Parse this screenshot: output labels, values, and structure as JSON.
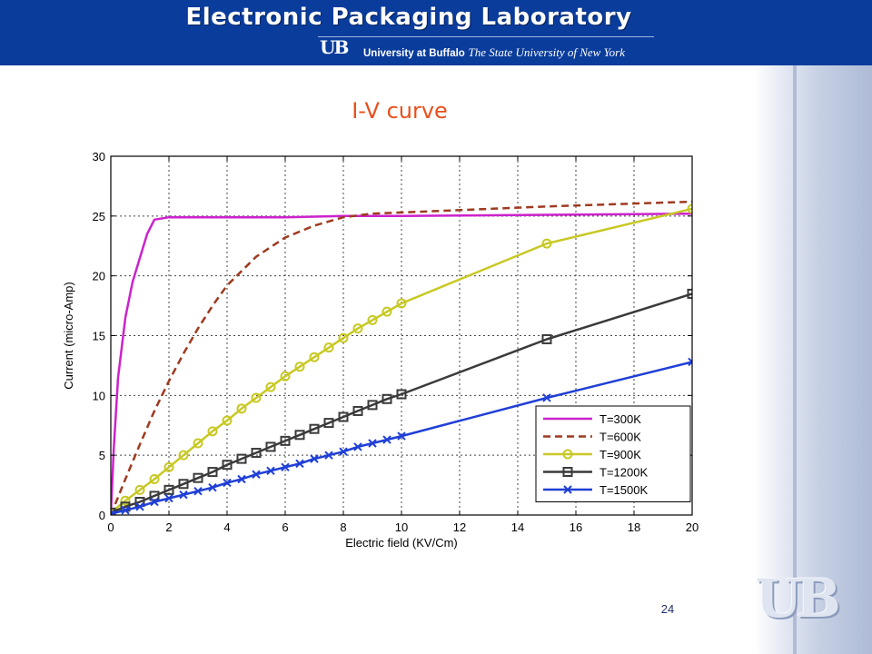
{
  "header": {
    "lab_title": "Electronic Packaging Laboratory",
    "ub_mark": "UB",
    "university": "University at Buffalo",
    "suny": "The State University of New York"
  },
  "slide": {
    "title": "I-V curve",
    "number": "24"
  },
  "colors": {
    "header_bg": "#0a3c9c",
    "title": "#e8501c",
    "T300": "#cc22cc",
    "T600": "#9e3a1f",
    "T900": "#c8c824",
    "T1200": "#3a3a3a",
    "T1500": "#1f3fd6"
  },
  "chart_data": {
    "type": "line",
    "title": "",
    "xlabel": "Electric field (KV/Cm)",
    "ylabel": "Current (micro-Amp)",
    "xlim": [
      0,
      20
    ],
    "ylim": [
      0,
      30
    ],
    "xticks": [
      0,
      2,
      4,
      6,
      8,
      10,
      12,
      14,
      16,
      18,
      20
    ],
    "yticks": [
      0,
      5,
      10,
      15,
      20,
      25,
      30
    ],
    "grid": true,
    "legend_position": "lower-right",
    "series": [
      {
        "name": "T=300K",
        "color": "#cc22cc",
        "line_style": "solid",
        "marker": "none",
        "x": [
          0,
          0.1,
          0.25,
          0.5,
          0.75,
          1.0,
          1.25,
          1.5,
          2.0,
          4.0,
          6.0,
          8.0,
          10.0,
          15.0,
          20.0
        ],
        "y": [
          0,
          5.5,
          11.5,
          16.5,
          19.5,
          21.5,
          23.5,
          24.7,
          24.9,
          24.9,
          24.9,
          25.0,
          25.0,
          25.1,
          25.2
        ]
      },
      {
        "name": "T=600K",
        "color": "#9e3a1f",
        "line_style": "dashed",
        "marker": "none",
        "x": [
          0,
          0.5,
          1.0,
          1.5,
          2.0,
          2.5,
          3.0,
          3.5,
          4.0,
          4.5,
          5.0,
          6.0,
          7.0,
          8.0,
          9.0,
          10.0,
          12.0,
          15.0,
          20.0
        ],
        "y": [
          0,
          3.0,
          5.9,
          8.7,
          11.2,
          13.5,
          15.6,
          17.5,
          19.2,
          20.4,
          21.6,
          23.2,
          24.2,
          24.9,
          25.2,
          25.3,
          25.5,
          25.8,
          26.2
        ]
      },
      {
        "name": "T=900K",
        "color": "#c8c824",
        "line_style": "solid",
        "marker": "circle",
        "x": [
          0,
          0.5,
          1.0,
          1.5,
          2.0,
          2.5,
          3.0,
          3.5,
          4.0,
          4.5,
          5.0,
          5.5,
          6.0,
          6.5,
          7.0,
          7.5,
          8.0,
          8.5,
          9.0,
          9.5,
          10.0,
          15.0,
          20.0
        ],
        "y": [
          0.2,
          1.2,
          2.1,
          3.0,
          4.0,
          5.0,
          6.0,
          7.0,
          7.9,
          8.9,
          9.8,
          10.7,
          11.6,
          12.4,
          13.2,
          14.0,
          14.8,
          15.6,
          16.3,
          17.0,
          17.7,
          22.7,
          25.6
        ]
      },
      {
        "name": "T=1200K",
        "color": "#3a3a3a",
        "line_style": "solid",
        "marker": "square",
        "x": [
          0,
          0.5,
          1.0,
          1.5,
          2.0,
          2.5,
          3.0,
          3.5,
          4.0,
          4.5,
          5.0,
          5.5,
          6.0,
          6.5,
          7.0,
          7.5,
          8.0,
          8.5,
          9.0,
          9.5,
          10.0,
          15.0,
          20.0
        ],
        "y": [
          0.2,
          0.7,
          1.1,
          1.6,
          2.1,
          2.6,
          3.1,
          3.6,
          4.2,
          4.7,
          5.2,
          5.7,
          6.2,
          6.7,
          7.2,
          7.7,
          8.2,
          8.7,
          9.2,
          9.7,
          10.1,
          14.7,
          18.5
        ]
      },
      {
        "name": "T=1500K",
        "color": "#1f3fd6",
        "line_style": "solid",
        "marker": "x",
        "x": [
          0,
          0.5,
          1.0,
          1.5,
          2.0,
          2.5,
          3.0,
          3.5,
          4.0,
          4.5,
          5.0,
          5.5,
          6.0,
          6.5,
          7.0,
          7.5,
          8.0,
          8.5,
          9.0,
          9.5,
          10.0,
          15.0,
          20.0
        ],
        "y": [
          0.1,
          0.4,
          0.7,
          1.1,
          1.4,
          1.7,
          2.0,
          2.3,
          2.7,
          3.0,
          3.4,
          3.7,
          4.0,
          4.3,
          4.7,
          5.0,
          5.3,
          5.7,
          6.0,
          6.3,
          6.6,
          9.8,
          12.8
        ]
      }
    ]
  }
}
